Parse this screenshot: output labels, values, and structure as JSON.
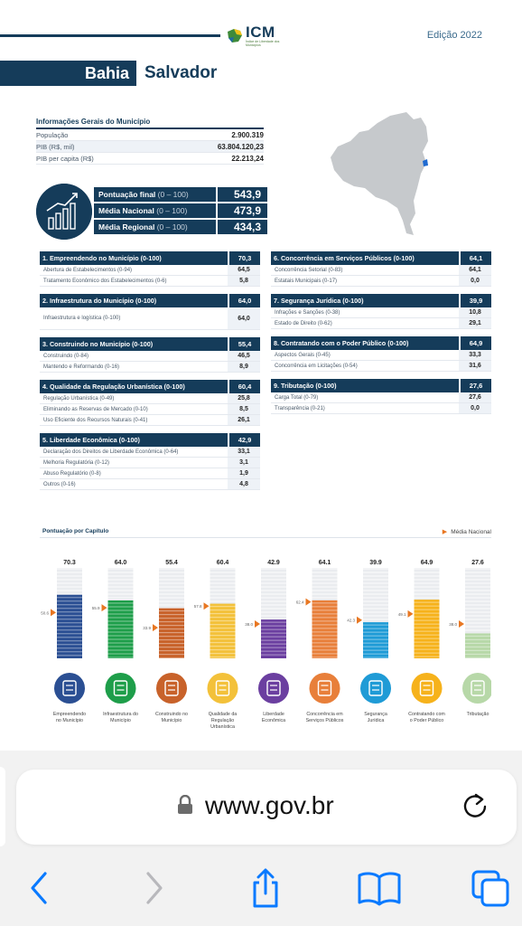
{
  "header": {
    "logo_text": "ICM",
    "logo_sub": "Índice de Liberdade dos Municípios",
    "edition": "Edição 2022",
    "state": "Bahia",
    "city": "Salvador"
  },
  "info": {
    "title": "Informações Gerais do Município",
    "rows": [
      {
        "label": "População",
        "value": "2.900.319"
      },
      {
        "label": "PIB (R$, mil)",
        "value": "63.804.120,23"
      },
      {
        "label": "PIB per capita (R$)",
        "value": "22.213,24"
      }
    ]
  },
  "scores": [
    {
      "label": "Pontuação final",
      "range": "(0 – 100)",
      "value": "543,9"
    },
    {
      "label": "Média Nacional",
      "range": "(0 – 100)",
      "value": "473,9"
    },
    {
      "label": "Média Regional",
      "range": "(0 – 100)",
      "value": "434,3"
    }
  ],
  "left_categories": [
    {
      "title": "1. Empreendendo no Município (0-100)",
      "value": "70,3",
      "subs": [
        {
          "label": "Abertura de Estabelecimentos (0-94)",
          "value": "64,5"
        },
        {
          "label": "Tratamento Econômico dos Estabelecimentos (0-6)",
          "value": "5,8"
        }
      ]
    },
    {
      "title": "2. Infraestrutura do Município (0-100)",
      "value": "64,0",
      "subs": [
        {
          "label": "Infraestrutura e logística (0-100)",
          "value": "64,0",
          "tall": true
        }
      ]
    },
    {
      "title": "3. Construindo no Município (0-100)",
      "value": "55,4",
      "subs": [
        {
          "label": "Construindo (0-84)",
          "value": "46,5"
        },
        {
          "label": "Mantendo e Reformando (0-16)",
          "value": "8,9"
        }
      ]
    },
    {
      "title": "4. Qualidade da Regulação Urbanística (0-100)",
      "value": "60,4",
      "subs": [
        {
          "label": "Regulação Urbanística (0-49)",
          "value": "25,8"
        },
        {
          "label": "Eliminando as Reservas de Mercado (0-10)",
          "value": "8,5"
        },
        {
          "label": "Uso Eficiente dos Recursos Naturais (0-41)",
          "value": "26,1"
        }
      ]
    },
    {
      "title": "5. Liberdade Econômica (0-100)",
      "value": "42,9",
      "subs": [
        {
          "label": "Declaração dos Direitos de Liberdade Econômica (0-64)",
          "value": "33,1"
        },
        {
          "label": "Melhoria Regulatória (0-12)",
          "value": "3,1"
        },
        {
          "label": "Abuso Regulatório (0-8)",
          "value": "1,9"
        },
        {
          "label": "Outros (0-16)",
          "value": "4,8"
        }
      ]
    }
  ],
  "right_categories": [
    {
      "title": "6. Concorrência em Serviços Públicos (0-100)",
      "value": "64,1",
      "subs": [
        {
          "label": "Concorrência Setorial (0-83)",
          "value": "64,1"
        },
        {
          "label": "Estatais Municipais (0-17)",
          "value": "0,0"
        }
      ]
    },
    {
      "title": "7. Segurança Jurídica (0-100)",
      "value": "39,9",
      "subs": [
        {
          "label": "Infrações e Sanções (0-38)",
          "value": "10,8"
        },
        {
          "label": "Estado de Direito (0-62)",
          "value": "29,1"
        }
      ]
    },
    {
      "title": "8. Contratando com o Poder Público (0-100)",
      "value": "64,9",
      "subs": [
        {
          "label": "Aspectos Gerais (0-45)",
          "value": "33,3"
        },
        {
          "label": "Concorrência em Licitações (0-54)",
          "value": "31,6"
        }
      ]
    },
    {
      "title": "9. Tributação (0-100)",
      "value": "27,6",
      "subs": [
        {
          "label": "Carga Total (0-79)",
          "value": "27,6"
        },
        {
          "label": "Transparência (0-21)",
          "value": "0,0"
        }
      ]
    }
  ],
  "chart": {
    "title": "Pontuação por Capítulo",
    "legend": "Média Nacional"
  },
  "chart_data": {
    "type": "bar",
    "title": "Pontuação por Capítulo",
    "ylim": [
      0,
      100
    ],
    "categories": [
      "Empreendendo no Município",
      "Infraestrutura do Município",
      "Construindo no Município",
      "Qualidade da Regulação Urbanística",
      "Liberdade Econômica",
      "Concorrência em Serviços Públicos",
      "Segurança Jurídica",
      "Contratando com o Poder Público",
      "Tributação"
    ],
    "series": [
      {
        "values": [
          70.3,
          64.0,
          55.4,
          60.4,
          42.9,
          64.1,
          39.9,
          64.9,
          27.6
        ]
      },
      {
        "name": "Média Nacional",
        "values": [
          50.6,
          55.9,
          33.9,
          57.8,
          38.0,
          62.4,
          42.3,
          49.1,
          38.0
        ]
      }
    ],
    "value_labels": [
      "70.3",
      "64.0",
      "55.4",
      "60.4",
      "42.9",
      "64.1",
      "39.9",
      "64.9",
      "27.6"
    ],
    "avg_labels": [
      "50.6",
      "55.9",
      "33.9",
      "57.8",
      "38.0",
      "62.4",
      "42.3",
      "49.1",
      "38.0"
    ],
    "colors": [
      "#2b4f93",
      "#1e9e4a",
      "#c8622a",
      "#f3c13a",
      "#6b3fa0",
      "#e87f3a",
      "#1f9bd6",
      "#f6b21b",
      "#b7d8a8"
    ],
    "category_labels": [
      "Empreendendo\nno Município",
      "Infraestrutura do\nMunicípio",
      "Construindo no\nMunicípio",
      "Qualidade da\nRegulação\nUrbanística",
      "Liberdade\nEconômica",
      "Concorrência em\nServiços Públicos",
      "Segurança\nJurídica",
      "Contratando com\no Poder Público",
      "Tributação"
    ],
    "icons": [
      "store-icon",
      "infrastructure-icon",
      "crane-icon",
      "buildings-icon",
      "feather-icon",
      "competition-icon",
      "legal-icon",
      "contract-icon",
      "tax-icon"
    ]
  },
  "browser": {
    "url": "www.gov.br"
  }
}
